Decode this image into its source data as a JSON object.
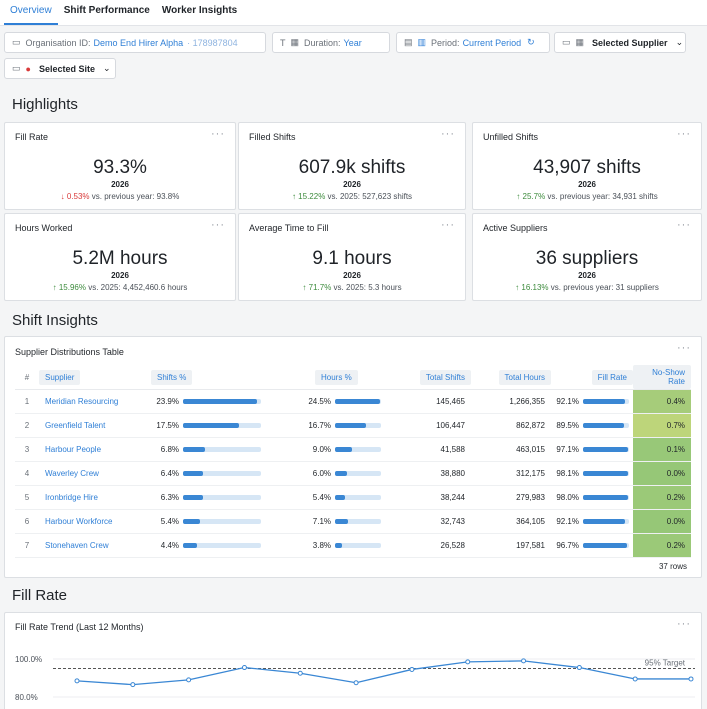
{
  "tabs": [
    {
      "label": "Overview",
      "active": true
    },
    {
      "label": "Shift Performance",
      "active": false
    },
    {
      "label": "Worker Insights",
      "active": false
    }
  ],
  "filters": {
    "org_key": "Organisation ID:",
    "org_value": "Demo End Hirer Alpha",
    "org_id": "· 178987804",
    "duration_key": "Duration:",
    "duration_value": "Year",
    "period_key": "Period:",
    "period_value": "Current Period",
    "supplier_label": "Selected Supplier",
    "site_label": "Selected Site"
  },
  "sections": {
    "highlights": "Highlights",
    "shift_insights": "Shift Insights",
    "fill_rate": "Fill Rate"
  },
  "kpis": [
    {
      "title": "Fill Rate",
      "value": "93.3%",
      "year": "2026",
      "arrow": "↓",
      "dir": "dn",
      "delta": "0.53%",
      "compare": " vs. previous year: 93.8%"
    },
    {
      "title": "Filled Shifts",
      "value": "607.9k shifts",
      "year": "2026",
      "arrow": "↑",
      "dir": "up",
      "delta": "15.22%",
      "compare": " vs. 2025: 527,623 shifts"
    },
    {
      "title": "Unfilled Shifts",
      "value": "43,907 shifts",
      "year": "2026",
      "arrow": "↑",
      "dir": "up",
      "delta": "25.7%",
      "compare": " vs. previous year: 34,931 shifts"
    },
    {
      "title": "Hours Worked",
      "value": "5.2M hours",
      "year": "2026",
      "arrow": "↑",
      "dir": "up",
      "delta": "15.96%",
      "compare": " vs. 2025: 4,452,460.6 hours"
    },
    {
      "title": "Average Time to Fill",
      "value": "9.1 hours",
      "year": "2026",
      "arrow": "↑",
      "dir": "up",
      "delta": "71.7%",
      "compare": " vs. 2025: 5.3 hours"
    },
    {
      "title": "Active Suppliers",
      "value": "36 suppliers",
      "year": "2026",
      "arrow": "↑",
      "dir": "up",
      "delta": "16.13%",
      "compare": " vs. previous year: 31 suppliers"
    }
  ],
  "table": {
    "title": "Supplier Distributions Table",
    "headers": [
      "#",
      "Supplier",
      "Shifts %",
      "Hours %",
      "Total Shifts",
      "Total Hours",
      "Fill Rate",
      "No-Show Rate"
    ],
    "rows": [
      {
        "n": "1",
        "supplier": "Meridian Resourcing",
        "shifts_pct": "23.9%",
        "shifts_frac": 0.95,
        "hours_pct": "24.5%",
        "hours_frac": 0.97,
        "total_shifts": "145,465",
        "total_hours": "1,266,355",
        "fill_rate": "92.1%",
        "fill_frac": 0.92,
        "no_show": "0.4%",
        "ns_color": "#a6cc7a"
      },
      {
        "n": "2",
        "supplier": "Greenfield Talent",
        "shifts_pct": "17.5%",
        "shifts_frac": 0.72,
        "hours_pct": "16.7%",
        "hours_frac": 0.68,
        "total_shifts": "106,447",
        "total_hours": "862,872",
        "fill_rate": "89.5%",
        "fill_frac": 0.895,
        "no_show": "0.7%",
        "ns_color": "#bdd57a"
      },
      {
        "n": "3",
        "supplier": "Harbour People",
        "shifts_pct": "6.8%",
        "shifts_frac": 0.28,
        "hours_pct": "9.0%",
        "hours_frac": 0.37,
        "total_shifts": "41,588",
        "total_hours": "463,015",
        "fill_rate": "97.1%",
        "fill_frac": 0.97,
        "no_show": "0.1%",
        "ns_color": "#98c878"
      },
      {
        "n": "4",
        "supplier": "Waverley Crew",
        "shifts_pct": "6.4%",
        "shifts_frac": 0.26,
        "hours_pct": "6.0%",
        "hours_frac": 0.25,
        "total_shifts": "38,880",
        "total_hours": "312,175",
        "fill_rate": "98.1%",
        "fill_frac": 0.98,
        "no_show": "0.0%",
        "ns_color": "#96c777"
      },
      {
        "n": "5",
        "supplier": "Ironbridge Hire",
        "shifts_pct": "6.3%",
        "shifts_frac": 0.26,
        "hours_pct": "5.4%",
        "hours_frac": 0.22,
        "total_shifts": "38,244",
        "total_hours": "279,983",
        "fill_rate": "98.0%",
        "fill_frac": 0.98,
        "no_show": "0.2%",
        "ns_color": "#9bc978"
      },
      {
        "n": "6",
        "supplier": "Harbour Workforce",
        "shifts_pct": "5.4%",
        "shifts_frac": 0.22,
        "hours_pct": "7.1%",
        "hours_frac": 0.29,
        "total_shifts": "32,743",
        "total_hours": "364,105",
        "fill_rate": "92.1%",
        "fill_frac": 0.92,
        "no_show": "0.0%",
        "ns_color": "#96c777"
      },
      {
        "n": "7",
        "supplier": "Stonehaven Crew",
        "shifts_pct": "4.4%",
        "shifts_frac": 0.18,
        "hours_pct": "3.8%",
        "hours_frac": 0.16,
        "total_shifts": "26,528",
        "total_hours": "197,581",
        "fill_rate": "96.7%",
        "fill_frac": 0.967,
        "no_show": "0.2%",
        "ns_color": "#9bc978"
      }
    ],
    "row_count": "37 rows"
  },
  "chart_data": {
    "type": "line",
    "title": "Fill Rate Trend (Last 12 Months)",
    "ylim": [
      80,
      100
    ],
    "y_ticks": [
      "100.0%",
      "80.0%"
    ],
    "y_tick_values": [
      100,
      80
    ],
    "x": [
      1,
      2,
      3,
      4,
      5,
      6,
      7,
      8,
      9,
      10,
      11,
      12
    ],
    "values": [
      88.5,
      86.5,
      89,
      95.5,
      92.5,
      87.5,
      94.5,
      98.5,
      99,
      95.5,
      89.5,
      89.5
    ],
    "target": {
      "value": 95,
      "label": "95% Target"
    },
    "line_color": "#3a87d4"
  }
}
